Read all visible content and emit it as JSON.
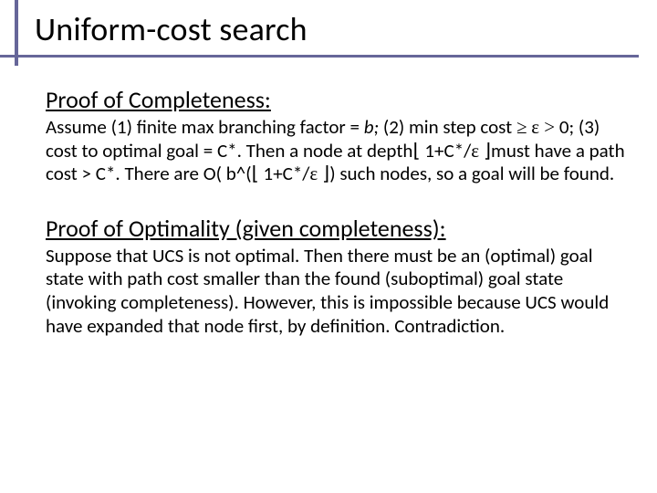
{
  "colors": {
    "accent": "#666699",
    "text": "#000000",
    "background": "#ffffff"
  },
  "typography": {
    "title_fontsize_pt": 36,
    "heading_fontsize_pt": 26,
    "body_fontsize_pt": 21,
    "font_family": "Calibri"
  },
  "title": "Uniform-cost search",
  "sections": {
    "completeness": {
      "heading": "Proof of Completeness:",
      "body_html": "Assume (1) finite max branching factor = <i>b;</i> (2) min step cost <span class='sym'>≥</span> <span class='sym'>ε ></span> 0; (3) cost to optimal goal = C*. Then a node at depth<span class='floor'>⌊</span> 1+C*/<span class='sym'>ε</span> <span class='floor'>⌋</span>must have a path cost > C*. There are O( b^(<span class='floor'>⌊</span> 1+C*/<span class='sym'>ε</span> <span class='floor'>⌋</span>) such nodes, so a goal will be found."
    },
    "optimality": {
      "heading": "Proof of Optimality (given completeness):",
      "body_html": "Suppose that UCS is not optimal. Then there must be an (optimal) goal state with path cost smaller than the found (suboptimal) goal state (invoking completeness). However, this is impossible because UCS would have expanded that node first, by definition. Contradiction."
    }
  }
}
